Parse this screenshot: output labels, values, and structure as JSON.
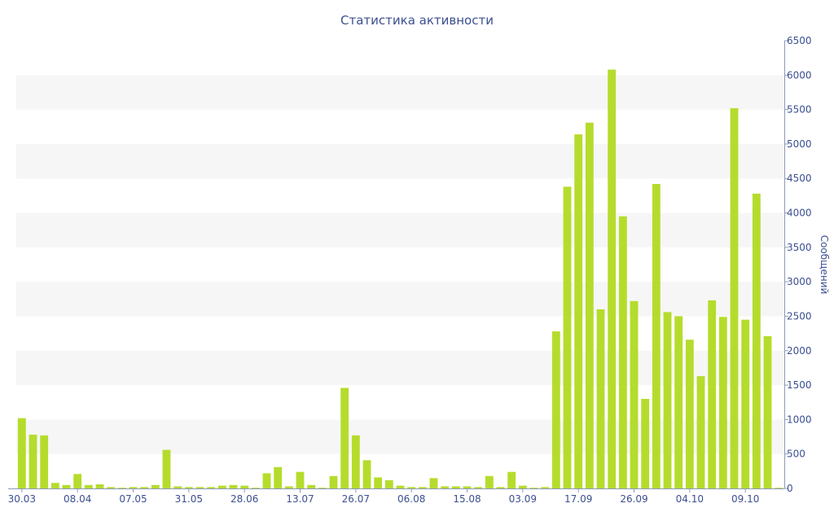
{
  "chart_data": {
    "type": "bar",
    "title": "Статистика активности",
    "xlabel": "",
    "ylabel": "Сообщений",
    "y_axis_side": "right",
    "ylim": [
      0,
      6500
    ],
    "yticks": [
      0,
      500,
      1000,
      1500,
      2000,
      2500,
      3000,
      3500,
      4000,
      4500,
      5000,
      5500,
      6000,
      6500
    ],
    "grid": "alternating horizontal bands",
    "x_tick_labels": [
      {
        "index": 0,
        "label": "30.03"
      },
      {
        "index": 5,
        "label": "08.04"
      },
      {
        "index": 10,
        "label": "07.05"
      },
      {
        "index": 15,
        "label": "31.05"
      },
      {
        "index": 20,
        "label": "28.06"
      },
      {
        "index": 25,
        "label": "13.07"
      },
      {
        "index": 30,
        "label": "26.07"
      },
      {
        "index": 35,
        "label": "06.08"
      },
      {
        "index": 40,
        "label": "15.08"
      },
      {
        "index": 45,
        "label": "03.09"
      },
      {
        "index": 50,
        "label": "17.09"
      },
      {
        "index": 55,
        "label": "26.09"
      },
      {
        "index": 60,
        "label": "04.10"
      },
      {
        "index": 65,
        "label": "09.10"
      }
    ],
    "bar_color": "#b5dc2c",
    "values": [
      1020,
      780,
      770,
      80,
      50,
      210,
      50,
      60,
      20,
      10,
      20,
      20,
      50,
      560,
      30,
      20,
      20,
      20,
      40,
      50,
      40,
      10,
      220,
      310,
      30,
      240,
      50,
      10,
      180,
      1460,
      770,
      410,
      160,
      120,
      40,
      20,
      20,
      150,
      30,
      30,
      30,
      20,
      180,
      20,
      240,
      40,
      10,
      20,
      2280,
      4380,
      5140,
      5310,
      2600,
      6080,
      3950,
      2720,
      1300,
      4420,
      2560,
      2500,
      2160,
      1630,
      2730,
      2490,
      5520,
      2450,
      4280,
      2210,
      10
    ]
  }
}
